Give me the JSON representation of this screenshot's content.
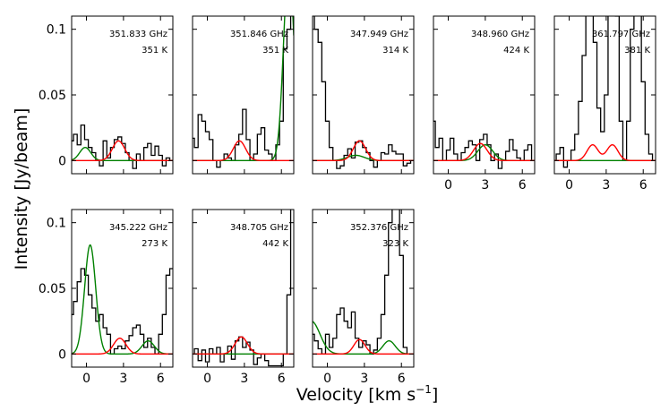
{
  "chart_data": {
    "type": "line",
    "figure": {
      "xlabel": "Velocity [km s",
      "xlabel_sup": "−1",
      "xlabel_close": "]",
      "ylabel": "Intensity [Jy/beam]",
      "xlim": [
        -1.2,
        7.0
      ],
      "ylim": [
        -0.01,
        0.11
      ],
      "yticks": [
        "0",
        "0.05",
        "0.1"
      ],
      "xticks": [
        "0",
        "3",
        "6"
      ],
      "series_colors": {
        "observed": "#000000",
        "model_red": "#ff0000",
        "model_green": "#008000"
      }
    },
    "panels": [
      {
        "freq": "351.833 GHz",
        "temp": "351 K",
        "show_yticks": true,
        "show_xticks": false,
        "observed": {
          "x": [
            -1.2,
            -0.9,
            -0.6,
            -0.3,
            0.0,
            0.3,
            0.6,
            0.9,
            1.2,
            1.5,
            1.8,
            2.1,
            2.4,
            2.7,
            3.0,
            3.3,
            3.6,
            3.9,
            4.2,
            4.5,
            4.8,
            5.1,
            5.4,
            5.7,
            6.0,
            6.3,
            6.6,
            6.9
          ],
          "y": [
            0.015,
            0.02,
            0.012,
            0.027,
            0.016,
            0.01,
            0.006,
            0.0,
            -0.004,
            0.015,
            0.002,
            0.01,
            0.016,
            0.018,
            0.013,
            0.006,
            0.0,
            -0.006,
            0.005,
            0.0,
            0.01,
            0.013,
            0.004,
            0.011,
            0.004,
            -0.004,
            0.002,
            0.0
          ]
        },
        "model_red": [
          {
            "center": 2.6,
            "amp": 0.015,
            "width": 0.5
          }
        ],
        "model_green": [
          {
            "center": -0.1,
            "amp": 0.01,
            "width": 0.45
          }
        ]
      },
      {
        "freq": "351.846 GHz",
        "temp": "351 K",
        "show_yticks": false,
        "show_xticks": false,
        "observed": {
          "x": [
            -1.2,
            -0.9,
            -0.6,
            -0.3,
            0.0,
            0.3,
            0.6,
            0.9,
            1.2,
            1.5,
            1.8,
            2.1,
            2.4,
            2.7,
            3.0,
            3.3,
            3.6,
            3.9,
            4.2,
            4.5,
            4.8,
            5.1,
            5.4,
            5.7,
            6.0,
            6.3,
            6.6,
            6.9
          ],
          "y": [
            0.017,
            0.01,
            0.035,
            0.03,
            0.022,
            0.016,
            0.0,
            -0.005,
            0.0,
            0.005,
            0.002,
            0.0,
            0.012,
            0.02,
            0.039,
            0.016,
            0.0,
            0.005,
            0.02,
            0.025,
            0.008,
            0.005,
            0.0,
            0.012,
            0.03,
            0.085,
            0.1,
            0.12
          ]
        },
        "model_red": [
          {
            "center": 2.6,
            "amp": 0.015,
            "width": 0.5
          }
        ],
        "model_green": [
          {
            "center": 6.6,
            "amp": 0.15,
            "width": 0.42
          }
        ]
      },
      {
        "freq": "347.949 GHz",
        "temp": "314 K",
        "show_yticks": false,
        "show_xticks": false,
        "observed": {
          "x": [
            -1.2,
            -0.9,
            -0.6,
            -0.3,
            0.0,
            0.3,
            0.6,
            0.9,
            1.2,
            1.5,
            1.8,
            2.1,
            2.4,
            2.7,
            3.0,
            3.3,
            3.6,
            3.9,
            4.2,
            4.5,
            4.8,
            5.1,
            5.4,
            5.7,
            6.0,
            6.3,
            6.6,
            6.9
          ],
          "y": [
            0.13,
            0.1,
            0.09,
            0.06,
            0.03,
            0.01,
            0.0,
            -0.006,
            -0.004,
            0.004,
            0.009,
            0.002,
            0.014,
            0.015,
            0.01,
            0.006,
            0.0,
            -0.005,
            0.0,
            0.006,
            0.005,
            0.012,
            0.007,
            0.005,
            0.005,
            -0.004,
            -0.002,
            0.0
          ]
        },
        "model_red": [
          {
            "center": 2.6,
            "amp": 0.015,
            "width": 0.5
          }
        ],
        "model_green": [
          {
            "center": 2.3,
            "amp": 0.004,
            "width": 0.7
          }
        ]
      },
      {
        "freq": "348.960 GHz",
        "temp": "424 K",
        "show_yticks": false,
        "show_xticks": true,
        "observed": {
          "x": [
            -1.2,
            -0.9,
            -0.6,
            -0.3,
            0.0,
            0.3,
            0.6,
            0.9,
            1.2,
            1.5,
            1.8,
            2.1,
            2.4,
            2.7,
            3.0,
            3.3,
            3.6,
            3.9,
            4.2,
            4.5,
            4.8,
            5.1,
            5.4,
            5.7,
            6.0,
            6.3,
            6.6,
            6.9
          ],
          "y": [
            0.03,
            0.01,
            0.017,
            0.0,
            0.008,
            0.017,
            0.005,
            0.0,
            0.006,
            0.01,
            0.015,
            0.012,
            0.0,
            0.016,
            0.02,
            0.012,
            0.0,
            0.005,
            -0.006,
            0.0,
            0.007,
            0.016,
            0.008,
            0.002,
            0.0,
            0.008,
            0.012,
            0.0
          ]
        },
        "model_red": [
          {
            "center": 2.6,
            "amp": 0.013,
            "width": 0.55
          }
        ],
        "model_green": [
          {
            "center": 3.0,
            "amp": 0.012,
            "width": 0.6
          }
        ]
      },
      {
        "freq": "361.797 GHz",
        "temp": "381 K",
        "show_yticks": false,
        "show_xticks": true,
        "observed": {
          "x": [
            -1.2,
            -0.9,
            -0.6,
            -0.3,
            0.0,
            0.3,
            0.6,
            0.9,
            1.2,
            1.5,
            1.8,
            2.1,
            2.4,
            2.7,
            3.0,
            3.3,
            3.6,
            3.9,
            4.2,
            4.5,
            4.8,
            5.1,
            5.4,
            5.7,
            6.0,
            6.3,
            6.6,
            6.9
          ],
          "y": [
            0.0,
            0.005,
            0.01,
            -0.005,
            0.0,
            0.008,
            0.02,
            0.045,
            0.08,
            0.13,
            0.16,
            0.09,
            0.04,
            0.022,
            0.05,
            0.13,
            0.16,
            0.11,
            0.03,
            0.0,
            0.03,
            0.1,
            0.17,
            0.14,
            0.06,
            0.02,
            0.005,
            0.0
          ]
        },
        "model_red": [
          {
            "center": 1.9,
            "amp": 0.012,
            "width": 0.45
          },
          {
            "center": 3.5,
            "amp": 0.012,
            "width": 0.45
          }
        ],
        "model_green": [
          {
            "center": 5.0,
            "amp": 0.0,
            "width": 0.5
          }
        ]
      },
      {
        "freq": "345.222 GHz",
        "temp": "273 K",
        "show_yticks": true,
        "show_xticks": true,
        "observed": {
          "x": [
            -1.2,
            -0.9,
            -0.6,
            -0.3,
            0.0,
            0.3,
            0.6,
            0.9,
            1.2,
            1.5,
            1.8,
            2.1,
            2.4,
            2.7,
            3.0,
            3.3,
            3.6,
            3.9,
            4.2,
            4.5,
            4.8,
            5.1,
            5.4,
            5.7,
            6.0,
            6.3,
            6.6,
            6.9
          ],
          "y": [
            0.03,
            0.04,
            0.055,
            0.065,
            0.06,
            0.045,
            0.035,
            0.025,
            0.03,
            0.02,
            0.015,
            0.0,
            0.004,
            0.006,
            0.004,
            0.01,
            0.014,
            0.02,
            0.022,
            0.015,
            0.005,
            0.012,
            0.005,
            0.0,
            0.015,
            0.03,
            0.06,
            0.065
          ]
        },
        "model_red": [
          {
            "center": 2.7,
            "amp": 0.012,
            "width": 0.5
          }
        ],
        "model_green": [
          {
            "center": 0.3,
            "amp": 0.083,
            "width": 0.45
          },
          {
            "center": 5.0,
            "amp": 0.01,
            "width": 0.5
          }
        ]
      },
      {
        "freq": "348.705 GHz",
        "temp": "442 K",
        "show_yticks": false,
        "show_xticks": true,
        "observed": {
          "x": [
            -1.2,
            -0.9,
            -0.6,
            -0.3,
            0.0,
            0.3,
            0.6,
            0.9,
            1.2,
            1.5,
            1.8,
            2.1,
            2.4,
            2.7,
            3.0,
            3.3,
            3.6,
            3.9,
            4.2,
            4.5,
            4.8,
            5.1,
            5.4,
            5.7,
            6.0,
            6.3,
            6.6,
            6.9
          ],
          "y": [
            0.0,
            0.004,
            -0.005,
            0.003,
            -0.006,
            0.004,
            0.0,
            0.005,
            -0.006,
            0.0,
            0.006,
            -0.004,
            0.01,
            0.013,
            0.005,
            0.009,
            0.003,
            -0.008,
            -0.003,
            0.0,
            -0.005,
            -0.009,
            -0.009,
            -0.009,
            -0.009,
            0.0,
            0.045,
            0.12
          ]
        },
        "model_red": [
          {
            "center": 2.75,
            "amp": 0.013,
            "width": 0.5
          }
        ],
        "model_green": [
          {
            "center": 3.0,
            "amp": 0.0,
            "width": 0.5
          }
        ]
      },
      {
        "freq": "352.376 GHz",
        "temp": "323 K",
        "show_yticks": false,
        "show_xticks": true,
        "observed": {
          "x": [
            -1.2,
            -0.9,
            -0.6,
            -0.3,
            0.0,
            0.3,
            0.6,
            0.9,
            1.2,
            1.5,
            1.8,
            2.1,
            2.4,
            2.7,
            3.0,
            3.3,
            3.6,
            3.9,
            4.2,
            4.5,
            4.8,
            5.1,
            5.4,
            5.7,
            6.0,
            6.3,
            6.6,
            6.9
          ],
          "y": [
            0.015,
            0.01,
            0.004,
            0.0,
            0.015,
            0.005,
            0.012,
            0.03,
            0.035,
            0.025,
            0.02,
            0.032,
            0.012,
            0.005,
            0.01,
            0.007,
            0.0,
            0.003,
            0.012,
            0.03,
            0.06,
            0.1,
            0.18,
            0.13,
            0.075,
            0.005,
            0.0,
            0.0
          ]
        },
        "model_red": [
          {
            "center": 2.6,
            "amp": 0.011,
            "width": 0.45
          }
        ],
        "model_green": [
          {
            "center": -1.3,
            "amp": 0.025,
            "width": 0.7
          },
          {
            "center": 5.0,
            "amp": 0.01,
            "width": 0.5
          }
        ]
      }
    ]
  }
}
